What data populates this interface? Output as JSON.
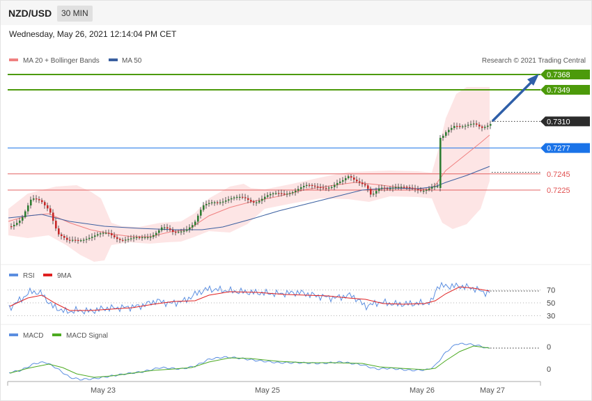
{
  "header": {
    "pair": "NZD/USD",
    "timeframe": "30 MIN",
    "timestamp": "Wednesday, May 26, 2021 12:14:04 PM CET"
  },
  "legend": {
    "ma20": "MA 20 + Bollinger Bands",
    "ma50": "MA 50",
    "rsi": "RSI",
    "rsi_ma": "9MA",
    "macd": "MACD",
    "macd_signal": "MACD Signal",
    "credit": "Research © 2021 Trading Central"
  },
  "colors": {
    "up": "#2e7d32",
    "down": "#c62828",
    "resistance": "#4c9a0a",
    "support_pivot": "#1a73e8",
    "support_red": "#e05050",
    "band": "#fde0e0",
    "ma20": "#f08080",
    "ma50": "#3a5fa0",
    "rsi": "#5b8ee0",
    "rsi_ma": "#e02020",
    "macd": "#5b8ee0",
    "macd_signal": "#4caa20",
    "arrow": "#2f5fa8"
  },
  "chart_data": {
    "type": "candlestick",
    "symbol": "NZD/USD",
    "x_tick_labels": [
      "May 23",
      "May 25",
      "May 26",
      "May 27"
    ],
    "y_range": [
      0.718,
      0.7385
    ],
    "levels": [
      {
        "value": 0.7368,
        "label": "0.7368",
        "kind": "resistance"
      },
      {
        "value": 0.7349,
        "label": "0.7349",
        "kind": "resistance"
      },
      {
        "value": 0.731,
        "label": "0.7310",
        "kind": "last"
      },
      {
        "value": 0.7277,
        "label": "0.7277",
        "kind": "pivot"
      },
      {
        "value": 0.7245,
        "label": "0.7245",
        "kind": "support"
      },
      {
        "value": 0.7225,
        "label": "0.7225",
        "kind": "support"
      }
    ],
    "last_price": 0.731,
    "ma50_last": 0.7247,
    "rsi_levels": [
      {
        "value": 70,
        "label": "70"
      },
      {
        "value": 50,
        "label": "50"
      },
      {
        "value": 30,
        "label": "30"
      }
    ],
    "macd_levels": [
      {
        "label": "0"
      },
      {
        "label": "0"
      }
    ]
  }
}
